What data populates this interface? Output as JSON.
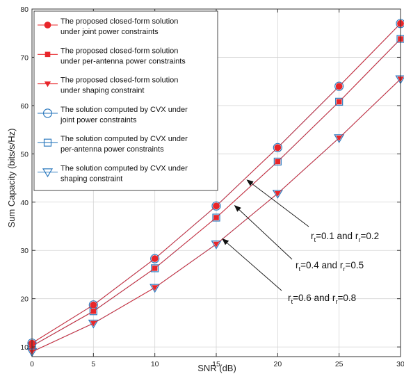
{
  "chart_data": {
    "type": "line",
    "xlabel": "SNR (dB)",
    "ylabel": "Sum Capacity (bits/s/Hz)",
    "xlim": [
      0,
      30
    ],
    "ylim": [
      8,
      80
    ],
    "xticks": [
      "0",
      "5",
      "10",
      "15",
      "20",
      "25",
      "30"
    ],
    "yticks": [
      "10",
      "20",
      "30",
      "40",
      "50",
      "60",
      "70",
      "80"
    ],
    "grid": true,
    "legend_position": "top-left",
    "x": [
      0,
      5,
      10,
      15,
      20,
      25,
      30
    ],
    "series": [
      {
        "name": "The proposed closed-form solution under joint power constraints",
        "values": [
          10.8,
          18.7,
          28.3,
          39.2,
          51.3,
          64.0,
          77.0
        ],
        "color": "#e8262a",
        "marker": "filled-circle",
        "group": "closed-form"
      },
      {
        "name": "The proposed closed-form solution under per-antenna power constraints",
        "values": [
          10.2,
          17.4,
          26.3,
          36.8,
          48.4,
          60.8,
          73.8
        ],
        "color": "#e8262a",
        "marker": "filled-square",
        "group": "closed-form"
      },
      {
        "name": "The proposed closed-form solution under shaping constraint",
        "values": [
          9.0,
          14.9,
          22.3,
          31.3,
          41.8,
          53.3,
          65.5
        ],
        "color": "#e8262a",
        "marker": "filled-down-triangle",
        "group": "closed-form"
      },
      {
        "name": "The  solution computed by CVX under joint power constraints",
        "values": [
          10.8,
          18.7,
          28.3,
          39.2,
          51.3,
          64.0,
          77.0
        ],
        "color": "#2f7bbf",
        "marker": "open-circle",
        "group": "cvx"
      },
      {
        "name": "The  solution computed by CVX under per-antenna power constraints",
        "values": [
          10.2,
          17.4,
          26.3,
          36.8,
          48.4,
          60.8,
          73.8
        ],
        "color": "#2f7bbf",
        "marker": "open-square",
        "group": "cvx"
      },
      {
        "name": "The  solution computed by CVX under shaping constraint",
        "values": [
          9.0,
          14.9,
          22.3,
          31.3,
          41.8,
          53.3,
          65.5
        ],
        "color": "#2f7bbf",
        "marker": "open-down-triangle",
        "group": "cvx"
      }
    ],
    "legend": [
      {
        "line1": "The proposed closed-form solution",
        "line2": "under joint power constraints"
      },
      {
        "line1": "The proposed closed-form solution",
        "line2": "under per-antenna power constraints"
      },
      {
        "line1": "The proposed closed-form solution",
        "line2": "under shaping constraint"
      },
      {
        "line1": "The  solution computed by CVX under",
        "line2": "joint power constraints"
      },
      {
        "line1": "The  solution computed by CVX under",
        "line2": "per-antenna power constraints"
      },
      {
        "line1": "The  solution computed by CVX under",
        "line2": "shaping constraint"
      }
    ],
    "annotations": [
      {
        "text": "r_t=0.1 and r_r=0.2",
        "parts": [
          "r",
          "t",
          "=0.1 and r",
          "r",
          "=0.2"
        ],
        "arrow_target": {
          "x": 17.5,
          "y": 44.6
        }
      },
      {
        "text": "r_t=0.4 and r_r=0.5",
        "parts": [
          "r",
          "t",
          "=0.4 and r",
          "r",
          "=0.5"
        ],
        "arrow_target": {
          "x": 16.5,
          "y": 39.3
        }
      },
      {
        "text": "r_t=0.6 and r_r=0.8",
        "parts": [
          "r",
          "t",
          "=0.6 and r",
          "r",
          "=0.8"
        ],
        "arrow_target": {
          "x": 15.5,
          "y": 32.4
        }
      }
    ]
  }
}
